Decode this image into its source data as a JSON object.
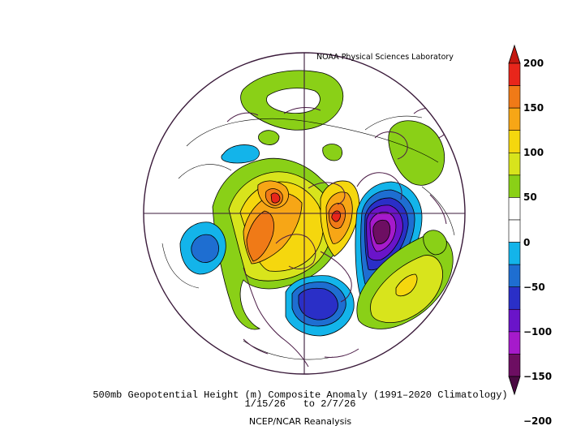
{
  "credit": "NOAA Physical Sciences Laboratory",
  "caption": {
    "line1": "500mb Geopotential Height (m) Composite Anomaly (1991–2020 Climatology)",
    "line2": "1/15/26   to 2/7/26",
    "line3": "NCEP/NCAR Reanalysis"
  },
  "colorbar": {
    "labels": [
      "200",
      "150",
      "100",
      "50",
      "0",
      "−50",
      "−100",
      "−150",
      "−200"
    ],
    "colors": [
      "#e8261b",
      "#f07a17",
      "#f7a616",
      "#f5d70e",
      "#d8e41c",
      "#8ad017",
      "#ffffff",
      "#ffffff",
      "#13b4ea",
      "#1e6ed1",
      "#2a2fc7",
      "#6a14c9",
      "#a61acb",
      "#6d0e62"
    ]
  },
  "map": {
    "projection": "north-polar-stereographic",
    "land_color": "#ffffff",
    "coast_color": "#4a1a45",
    "anomalies": [
      {
        "name": "western-north-america-ridge",
        "sign": "positive",
        "peak_m": 150
      },
      {
        "name": "greenland-ridge",
        "sign": "positive",
        "peak_m": 150
      },
      {
        "name": "north-atlantic-trough",
        "sign": "negative",
        "peak_m": -200
      },
      {
        "name": "eastern-us-trough",
        "sign": "negative",
        "peak_m": -100
      },
      {
        "name": "north-pacific-low",
        "sign": "negative",
        "peak_m": -50
      },
      {
        "name": "eastern-atlantic-ridge",
        "sign": "positive",
        "peak_m": 100
      },
      {
        "name": "siberia-ridge",
        "sign": "positive",
        "peak_m": 50
      },
      {
        "name": "scandinavia-ridge",
        "sign": "positive",
        "peak_m": 50
      }
    ]
  }
}
